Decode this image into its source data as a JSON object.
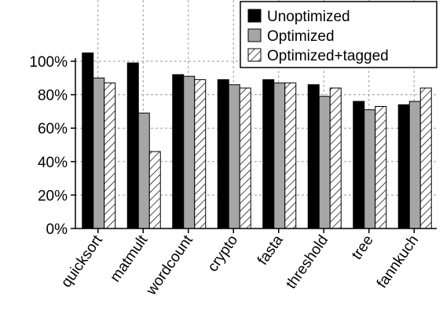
{
  "chart_data": {
    "type": "bar",
    "categories": [
      "quicksort",
      "matmult",
      "wordcount",
      "crypto",
      "fasta",
      "threshold",
      "tree",
      "fannkuch"
    ],
    "series": [
      {
        "name": "Unoptimized",
        "values": [
          105,
          99,
          92,
          89,
          89,
          86,
          76,
          74
        ],
        "color": "#000000",
        "pattern": "solid"
      },
      {
        "name": "Optimized",
        "values": [
          90,
          69,
          91,
          86,
          87,
          79,
          71,
          76
        ],
        "color": "#a6a6a6",
        "pattern": "solid"
      },
      {
        "name": "Optimized+tagged",
        "values": [
          87,
          46,
          89,
          84,
          87,
          84,
          73,
          84
        ],
        "color": "#ffffff",
        "pattern": "hatch"
      }
    ],
    "ylim": [
      0,
      100
    ],
    "yticks": [
      0,
      20,
      40,
      60,
      80,
      100
    ],
    "ytick_labels": [
      "0%",
      "20%",
      "40%",
      "60%",
      "80%",
      "100%"
    ],
    "xlabel": "",
    "ylabel": "",
    "title": "",
    "grid": "dashed",
    "legend_position": "top-right"
  }
}
